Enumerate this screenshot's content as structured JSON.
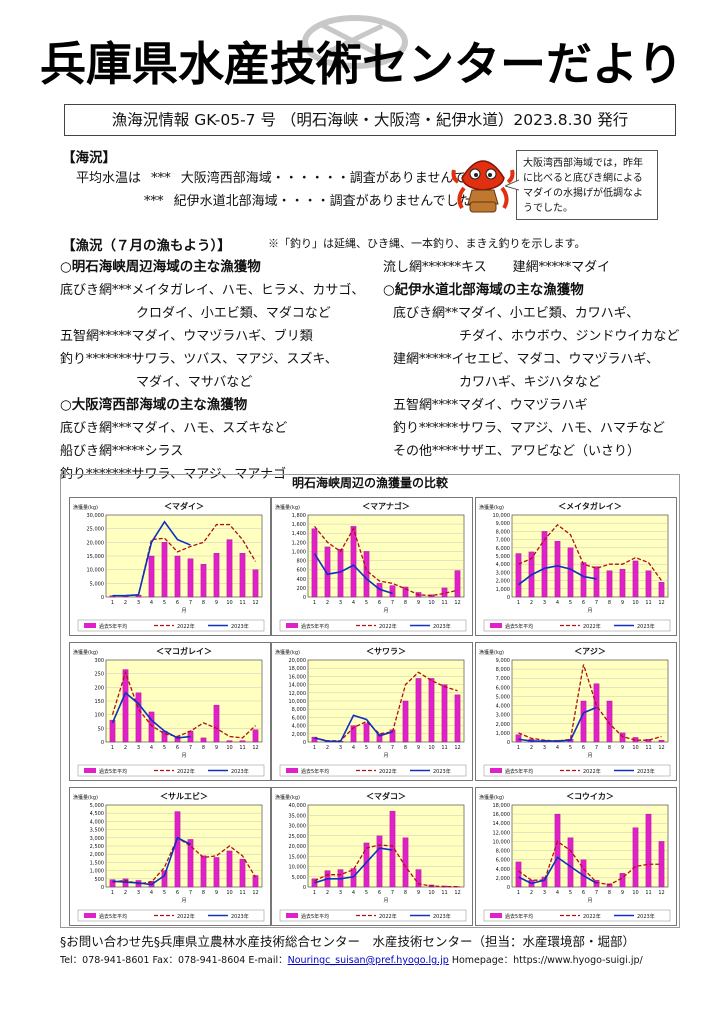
{
  "header": {
    "title": "兵庫県水産技術センターだより",
    "issue": "漁海況情報 GK-05-7 号 （明石海峡・大阪湾・紀伊水道）2023.8.30 発行"
  },
  "sea": {
    "heading": "【海況】",
    "row1_label": "平均水温は",
    "row1_stars": "***",
    "row1_text": "大阪湾西部海域・・・・・・調査がありませんでした。",
    "row2_stars": "***",
    "row2_text": "紀伊水道北部海域・・・・調査がありませんでした。"
  },
  "callout": {
    "text": "大阪湾西部海域では，昨年に比べると底びき網によるマダイの水揚げが低調なようでした。"
  },
  "fishing": {
    "heading": "【漁況（７月の漁もよう）】",
    "note": "※「釣り」は延縄、ひき縄、一本釣り、まきえ釣りを示します。",
    "left": [
      {
        "kind": "head",
        "text": "○明石海峡周辺海域の主な漁獲物"
      },
      {
        "kind": "line",
        "text": "底びき網***メイタガレイ、ハモ、ヒラメ、カサゴ、"
      },
      {
        "kind": "cont",
        "text": "クロダイ、小エビ類、マダコなど"
      },
      {
        "kind": "line",
        "text": "五智網*****マダイ、ウマヅラハギ、ブリ類"
      },
      {
        "kind": "line",
        "text": "釣り*******サワラ、ツバス、マアジ、スズキ、"
      },
      {
        "kind": "cont",
        "text": "マダイ、マサバなど"
      },
      {
        "kind": "head",
        "text": "○大阪湾西部海域の主な漁獲物"
      },
      {
        "kind": "line",
        "text": "底びき網***マダイ、ハモ、スズキなど"
      },
      {
        "kind": "line",
        "text": "船びき網*****シラス"
      },
      {
        "kind": "line",
        "text": "釣り*******サワラ、マアジ、マアナゴ"
      }
    ],
    "right": [
      {
        "kind": "line",
        "text": "流し網******キス　　建網*****マダイ"
      },
      {
        "kind": "head",
        "text": "○紀伊水道北部海域の主な漁獲物"
      },
      {
        "kind": "line",
        "text": "底びき網**マダイ、小エビ類、カワハギ、"
      },
      {
        "kind": "cont",
        "text": "チダイ、ホウボウ、ジンドウイカなど"
      },
      {
        "kind": "line",
        "text": "建網*****イセエビ、マダコ、ウマヅラハギ、"
      },
      {
        "kind": "cont",
        "text": "カワハギ、キジハタなど"
      },
      {
        "kind": "line",
        "text": "五智網****マダイ、ウマヅラハギ"
      },
      {
        "kind": "line",
        "text": "釣り******サワラ、マアジ、ハモ、ハマチなど"
      },
      {
        "kind": "line",
        "text": "その他****サザエ、アワビなど（いさり）"
      }
    ]
  },
  "charts_title": "明石海峡周辺の漁獲量の比較",
  "chart_legend": {
    "avg": "過去5年平均",
    "y2022": "2022年",
    "y2023": "2023年"
  },
  "chart_ylabel": "漁獲量(kg)",
  "chart_xlabel": "月",
  "chart_colors": {
    "bar": "#e020c8",
    "bar_edge": "#a0108c",
    "line2022": "#b01010",
    "line2023": "#1030c0",
    "plot_bg": "#ffffc0"
  },
  "chart_data": [
    {
      "type": "bar+line",
      "title": "＜マダイ＞",
      "categories": [
        "1",
        "2",
        "3",
        "4",
        "5",
        "6",
        "7",
        "8",
        "9",
        "10",
        "11",
        "12"
      ],
      "ylim": [
        0,
        30000
      ],
      "yticks": [
        "0",
        "5,000",
        "10,000",
        "15,000",
        "20,000",
        "25,000",
        "30,000"
      ],
      "series": [
        {
          "name": "過去5年平均",
          "kind": "bar",
          "values": [
            500,
            500,
            700,
            15000,
            20000,
            15000,
            14000,
            12000,
            16000,
            21000,
            16000,
            10000
          ]
        },
        {
          "name": "2022年",
          "kind": "line-dashed",
          "values": [
            500,
            500,
            800,
            21000,
            21500,
            16500,
            18500,
            20000,
            26500,
            26500,
            21000,
            13000
          ]
        },
        {
          "name": "2023年",
          "kind": "line",
          "values": [
            500,
            500,
            800,
            20000,
            27500,
            21000,
            19000,
            null,
            null,
            null,
            null,
            null
          ]
        }
      ]
    },
    {
      "type": "bar+line",
      "title": "＜マアナゴ＞",
      "categories": [
        "1",
        "2",
        "3",
        "4",
        "5",
        "6",
        "7",
        "8",
        "9",
        "10",
        "11",
        "12"
      ],
      "ylim": [
        0,
        1800
      ],
      "yticks": [
        "0",
        "200",
        "400",
        "600",
        "800",
        "1,000",
        "1,200",
        "1,400",
        "1,600",
        "1,800"
      ],
      "series": [
        {
          "name": "過去5年平均",
          "kind": "bar",
          "values": [
            1500,
            1100,
            1050,
            1550,
            1000,
            300,
            250,
            220,
            100,
            50,
            200,
            580
          ]
        },
        {
          "name": "2022年",
          "kind": "line-dashed",
          "values": [
            1550,
            1200,
            1000,
            1500,
            580,
            350,
            300,
            180,
            50,
            30,
            80,
            150
          ]
        },
        {
          "name": "2023年",
          "kind": "line",
          "values": [
            950,
            500,
            550,
            700,
            400,
            170,
            80,
            null,
            null,
            null,
            null,
            null
          ]
        }
      ]
    },
    {
      "type": "bar+line",
      "title": "＜メイタガレイ＞",
      "categories": [
        "1",
        "2",
        "3",
        "4",
        "5",
        "6",
        "7",
        "8",
        "9",
        "10",
        "11",
        "12"
      ],
      "ylim": [
        0,
        10000
      ],
      "yticks": [
        "0",
        "1,000",
        "2,000",
        "3,000",
        "4,000",
        "5,000",
        "6,000",
        "7,000",
        "8,000",
        "9,000",
        "10,000"
      ],
      "series": [
        {
          "name": "過去5年平均",
          "kind": "bar",
          "values": [
            5300,
            5500,
            8000,
            6800,
            6000,
            4200,
            3700,
            3200,
            3400,
            4400,
            3200,
            1800
          ]
        },
        {
          "name": "2022年",
          "kind": "line-dashed",
          "values": [
            4000,
            4700,
            7000,
            8800,
            7600,
            4000,
            3500,
            4000,
            4000,
            4800,
            4200,
            2000
          ]
        },
        {
          "name": "2023年",
          "kind": "line",
          "values": [
            1500,
            2700,
            3500,
            3800,
            3400,
            2500,
            2200,
            null,
            null,
            null,
            null,
            null
          ]
        }
      ]
    },
    {
      "type": "bar+line",
      "title": "＜マコガレイ＞",
      "categories": [
        "1",
        "2",
        "3",
        "4",
        "5",
        "6",
        "7",
        "8",
        "9",
        "10",
        "11",
        "12"
      ],
      "ylim": [
        0,
        300
      ],
      "yticks": [
        "0",
        "50",
        "100",
        "150",
        "200",
        "250",
        "300"
      ],
      "series": [
        {
          "name": "過去5年平均",
          "kind": "bar",
          "values": [
            80,
            265,
            180,
            110,
            40,
            20,
            40,
            15,
            135,
            5,
            5,
            45
          ]
        },
        {
          "name": "2022年",
          "kind": "line-dashed",
          "values": [
            100,
            255,
            120,
            60,
            30,
            20,
            40,
            70,
            50,
            20,
            15,
            60
          ]
        },
        {
          "name": "2023年",
          "kind": "line",
          "values": [
            70,
            180,
            140,
            80,
            40,
            15,
            20,
            null,
            null,
            null,
            null,
            null
          ]
        }
      ]
    },
    {
      "type": "bar+line",
      "title": "＜サワラ＞",
      "categories": [
        "1",
        "2",
        "3",
        "4",
        "5",
        "6",
        "7",
        "8",
        "9",
        "10",
        "11",
        "12"
      ],
      "ylim": [
        0,
        20000
      ],
      "yticks": [
        "0",
        "2,000",
        "4,000",
        "6,000",
        "8,000",
        "10,000",
        "12,000",
        "14,000",
        "16,000",
        "18,000",
        "20,000"
      ],
      "series": [
        {
          "name": "過去5年平均",
          "kind": "bar",
          "values": [
            1200,
            300,
            200,
            4000,
            4500,
            2000,
            3000,
            10000,
            15500,
            15500,
            14000,
            11500
          ]
        },
        {
          "name": "2022年",
          "kind": "line-dashed",
          "values": [
            1000,
            300,
            300,
            3500,
            5000,
            2000,
            2500,
            14000,
            17000,
            15000,
            13500,
            12500
          ]
        },
        {
          "name": "2023年",
          "kind": "line",
          "values": [
            1000,
            200,
            100,
            6500,
            5500,
            1500,
            2500,
            null,
            null,
            null,
            null,
            null
          ]
        }
      ]
    },
    {
      "type": "bar+line",
      "title": "＜アジ＞",
      "categories": [
        "1",
        "2",
        "3",
        "4",
        "5",
        "6",
        "7",
        "8",
        "9",
        "10",
        "11",
        "12"
      ],
      "ylim": [
        0,
        9000
      ],
      "yticks": [
        "0",
        "1,000",
        "2,000",
        "3,000",
        "4,000",
        "5,000",
        "6,000",
        "7,000",
        "8,000",
        "9,000"
      ],
      "series": [
        {
          "name": "過去5年平均",
          "kind": "bar",
          "values": [
            800,
            300,
            200,
            200,
            300,
            4500,
            6400,
            4500,
            1000,
            500,
            300,
            200
          ]
        },
        {
          "name": "2022年",
          "kind": "line-dashed",
          "values": [
            1000,
            400,
            200,
            100,
            300,
            8500,
            4000,
            2000,
            600,
            200,
            200,
            600
          ]
        },
        {
          "name": "2023年",
          "kind": "line",
          "values": [
            300,
            100,
            100,
            100,
            200,
            3200,
            3800,
            null,
            null,
            null,
            null,
            null
          ]
        }
      ]
    },
    {
      "type": "bar+line",
      "title": "＜サルエビ＞",
      "categories": [
        "1",
        "2",
        "3",
        "4",
        "5",
        "6",
        "7",
        "8",
        "9",
        "10",
        "11",
        "12"
      ],
      "ylim": [
        0,
        5000
      ],
      "yticks": [
        "0",
        "500",
        "1,000",
        "1,500",
        "2,000",
        "2,500",
        "3,000",
        "3,500",
        "4,000",
        "4,500",
        "5,000"
      ],
      "series": [
        {
          "name": "過去5年平均",
          "kind": "bar",
          "values": [
            450,
            500,
            400,
            350,
            1000,
            4600,
            2900,
            1900,
            1800,
            2200,
            1700,
            700
          ]
        },
        {
          "name": "2022年",
          "kind": "line-dashed",
          "values": [
            300,
            400,
            200,
            300,
            1200,
            3000,
            2500,
            1800,
            1900,
            2500,
            1900,
            600
          ]
        },
        {
          "name": "2023年",
          "kind": "line",
          "values": [
            350,
            300,
            250,
            150,
            700,
            3000,
            2600,
            null,
            null,
            null,
            null,
            null
          ]
        }
      ]
    },
    {
      "type": "bar+line",
      "title": "＜マダコ＞",
      "categories": [
        "1",
        "2",
        "3",
        "4",
        "5",
        "6",
        "7",
        "8",
        "9",
        "10",
        "11",
        "12"
      ],
      "ylim": [
        0,
        40000
      ],
      "yticks": [
        "0",
        "5,000",
        "10,000",
        "15,000",
        "20,000",
        "25,000",
        "30,000",
        "35,000",
        "40,000"
      ],
      "series": [
        {
          "name": "過去5年平均",
          "kind": "bar",
          "values": [
            4000,
            8000,
            8500,
            9000,
            21500,
            25000,
            37000,
            24000,
            8500,
            1000,
            500,
            200
          ]
        },
        {
          "name": "2022年",
          "kind": "line-dashed",
          "values": [
            3000,
            6000,
            6000,
            8500,
            19000,
            20500,
            20000,
            10000,
            1500,
            500,
            200,
            200
          ]
        },
        {
          "name": "2023年",
          "kind": "line",
          "values": [
            2000,
            4000,
            4000,
            5000,
            12000,
            19000,
            18000,
            null,
            null,
            null,
            null,
            null
          ]
        }
      ]
    },
    {
      "type": "bar+line",
      "title": "＜コウイカ＞",
      "categories": [
        "1",
        "2",
        "3",
        "4",
        "5",
        "6",
        "7",
        "8",
        "9",
        "10",
        "11",
        "12"
      ],
      "ylim": [
        0,
        18000
      ],
      "yticks": [
        "0",
        "2,000",
        "4,000",
        "6,000",
        "8,000",
        "10,000",
        "12,000",
        "14,000",
        "16,000",
        "18,000"
      ],
      "series": [
        {
          "name": "過去5年平均",
          "kind": "bar",
          "values": [
            5500,
            1500,
            2200,
            16000,
            10800,
            6000,
            1500,
            700,
            3000,
            13000,
            16000,
            10000
          ]
        },
        {
          "name": "2022年",
          "kind": "line-dashed",
          "values": [
            3500,
            1500,
            1500,
            10000,
            8000,
            4000,
            1000,
            500,
            2000,
            4500,
            5000,
            5000
          ]
        },
        {
          "name": "2023年",
          "kind": "line",
          "values": [
            2200,
            800,
            1500,
            6500,
            4500,
            2500,
            800,
            null,
            null,
            null,
            null,
            null
          ]
        }
      ]
    }
  ],
  "footer": {
    "contact": "§お問い合わせ先§兵庫県立農林水産技術総合センター　水産技術センター（担当：水産環境部・堀部）",
    "tel_fax_prefix": "Tel：078-941-8601 Fax：078-941-8604 E-mail：",
    "email": "Nouringc_suisan@pref.hyogo.lg.jp",
    "homepage": " Homepage：https://www.hyogo-suigi.jp/"
  }
}
